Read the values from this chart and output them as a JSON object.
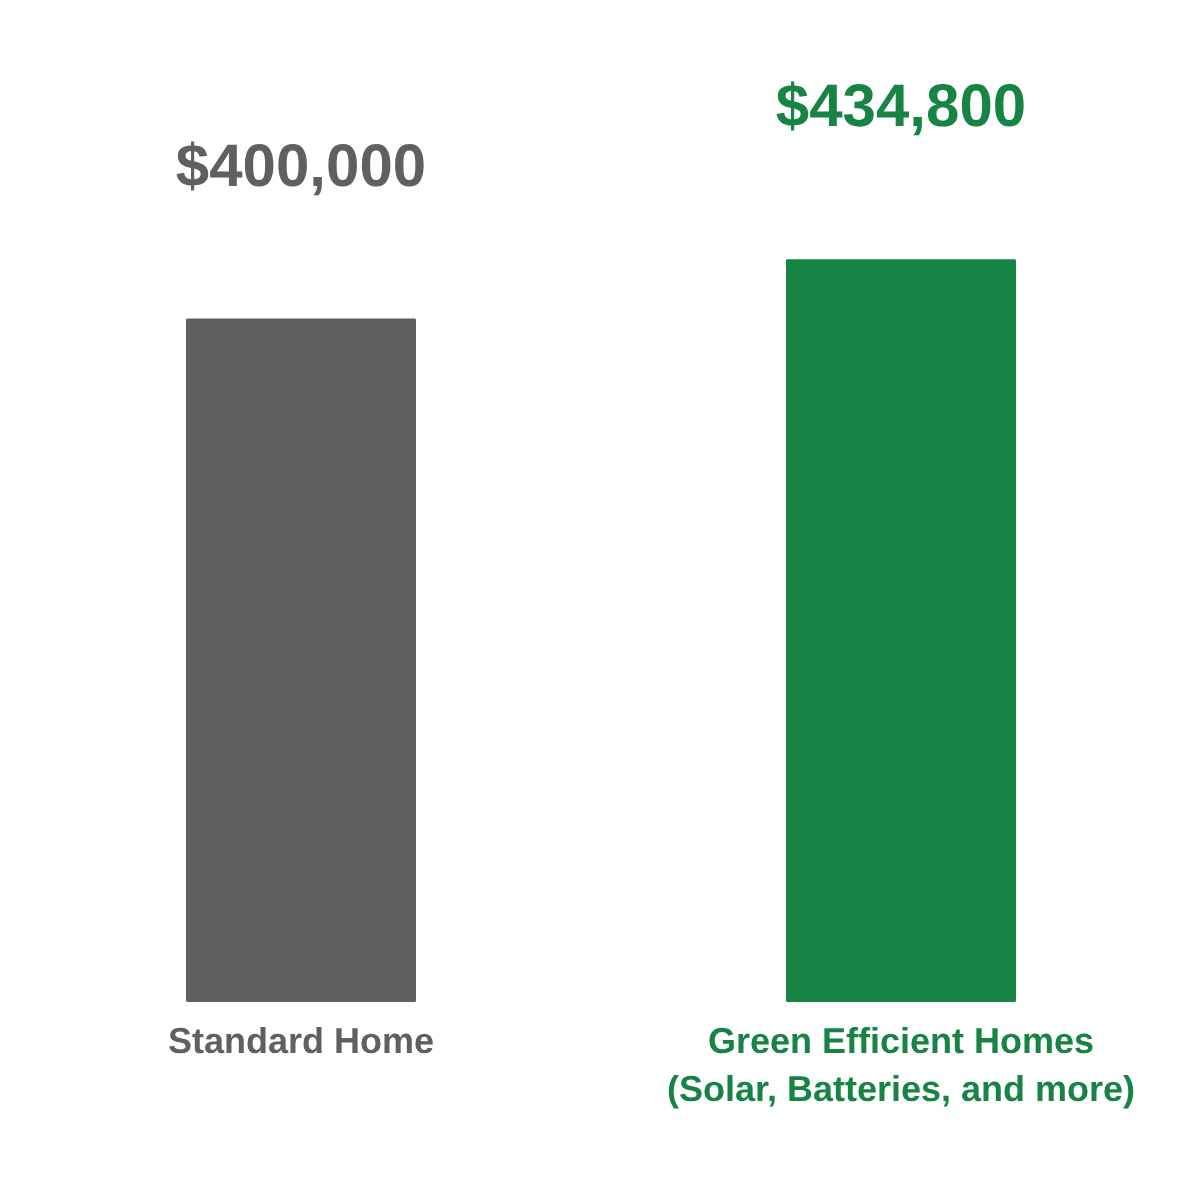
{
  "chart_data": {
    "type": "bar",
    "categories": [
      "Standard Home",
      "Green Efficient Homes\n(Solar, Batteries, and more)"
    ],
    "values": [
      400000,
      434800
    ],
    "colors": [
      "#5f6062",
      "#178344"
    ],
    "value_labels": [
      "$400,000",
      "$434,800"
    ]
  }
}
